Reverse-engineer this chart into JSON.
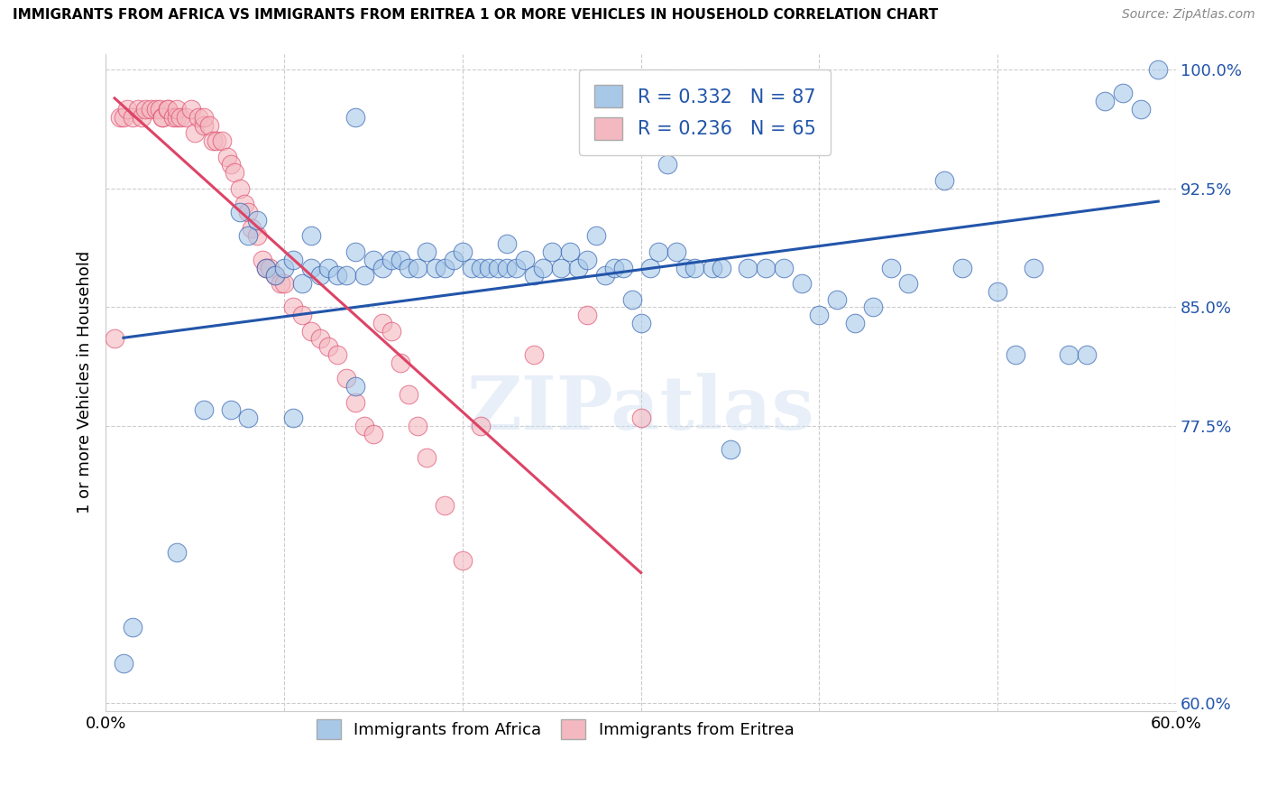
{
  "title": "IMMIGRANTS FROM AFRICA VS IMMIGRANTS FROM ERITREA 1 OR MORE VEHICLES IN HOUSEHOLD CORRELATION CHART",
  "source": "Source: ZipAtlas.com",
  "ylabel": "1 or more Vehicles in Household",
  "xlim": [
    0.0,
    0.6
  ],
  "ylim": [
    0.595,
    1.01
  ],
  "xticks": [
    0.0,
    0.1,
    0.2,
    0.3,
    0.4,
    0.5,
    0.6
  ],
  "xticklabels": [
    "0.0%",
    "",
    "",
    "",
    "",
    "",
    "60.0%"
  ],
  "yticks": [
    0.6,
    0.775,
    0.85,
    0.925,
    1.0
  ],
  "yticklabels": [
    "60.0%",
    "77.5%",
    "85.0%",
    "92.5%",
    "100.0%"
  ],
  "blue_color": "#a8c8e8",
  "pink_color": "#f4b8c0",
  "blue_line_color": "#2255aa",
  "pink_line_color": "#dd4466",
  "legend1_label": "Immigrants from Africa",
  "legend2_label": "Immigrants from Eritrea",
  "watermark": "ZIPatlas",
  "blue_scatter_x": [
    0.01,
    0.04,
    0.055,
    0.07,
    0.075,
    0.08,
    0.085,
    0.09,
    0.095,
    0.1,
    0.105,
    0.11,
    0.115,
    0.115,
    0.12,
    0.125,
    0.13,
    0.135,
    0.14,
    0.14,
    0.145,
    0.15,
    0.155,
    0.16,
    0.165,
    0.17,
    0.175,
    0.18,
    0.185,
    0.19,
    0.195,
    0.2,
    0.205,
    0.21,
    0.215,
    0.22,
    0.225,
    0.225,
    0.23,
    0.235,
    0.24,
    0.245,
    0.25,
    0.255,
    0.26,
    0.265,
    0.27,
    0.275,
    0.28,
    0.285,
    0.29,
    0.295,
    0.3,
    0.305,
    0.31,
    0.315,
    0.32,
    0.325,
    0.33,
    0.335,
    0.34,
    0.345,
    0.35,
    0.36,
    0.37,
    0.38,
    0.39,
    0.4,
    0.41,
    0.42,
    0.43,
    0.44,
    0.45,
    0.47,
    0.48,
    0.5,
    0.51,
    0.52,
    0.54,
    0.55,
    0.56,
    0.57,
    0.58,
    0.59,
    0.015,
    0.08,
    0.105,
    0.14
  ],
  "blue_scatter_y": [
    0.625,
    0.695,
    0.785,
    0.785,
    0.91,
    0.895,
    0.905,
    0.875,
    0.87,
    0.875,
    0.88,
    0.865,
    0.875,
    0.895,
    0.87,
    0.875,
    0.87,
    0.87,
    0.885,
    0.97,
    0.87,
    0.88,
    0.875,
    0.88,
    0.88,
    0.875,
    0.875,
    0.885,
    0.875,
    0.875,
    0.88,
    0.885,
    0.875,
    0.875,
    0.875,
    0.875,
    0.875,
    0.89,
    0.875,
    0.88,
    0.87,
    0.875,
    0.885,
    0.875,
    0.885,
    0.875,
    0.88,
    0.895,
    0.87,
    0.875,
    0.875,
    0.855,
    0.84,
    0.875,
    0.885,
    0.94,
    0.885,
    0.875,
    0.875,
    0.96,
    0.875,
    0.875,
    0.76,
    0.875,
    0.875,
    0.875,
    0.865,
    0.845,
    0.855,
    0.84,
    0.85,
    0.875,
    0.865,
    0.93,
    0.875,
    0.86,
    0.82,
    0.875,
    0.82,
    0.82,
    0.98,
    0.985,
    0.975,
    1.0,
    0.648,
    0.78,
    0.78,
    0.8
  ],
  "pink_scatter_x": [
    0.005,
    0.008,
    0.01,
    0.012,
    0.015,
    0.018,
    0.02,
    0.022,
    0.025,
    0.028,
    0.03,
    0.032,
    0.032,
    0.035,
    0.035,
    0.038,
    0.04,
    0.04,
    0.042,
    0.045,
    0.048,
    0.05,
    0.052,
    0.055,
    0.055,
    0.058,
    0.06,
    0.062,
    0.065,
    0.068,
    0.07,
    0.072,
    0.075,
    0.078,
    0.08,
    0.082,
    0.085,
    0.088,
    0.09,
    0.092,
    0.095,
    0.098,
    0.1,
    0.105,
    0.11,
    0.115,
    0.12,
    0.125,
    0.13,
    0.135,
    0.14,
    0.145,
    0.15,
    0.155,
    0.16,
    0.165,
    0.17,
    0.175,
    0.18,
    0.19,
    0.2,
    0.21,
    0.24,
    0.27,
    0.3
  ],
  "pink_scatter_y": [
    0.83,
    0.97,
    0.97,
    0.975,
    0.97,
    0.975,
    0.97,
    0.975,
    0.975,
    0.975,
    0.975,
    0.97,
    0.97,
    0.975,
    0.975,
    0.97,
    0.97,
    0.975,
    0.97,
    0.97,
    0.975,
    0.96,
    0.97,
    0.965,
    0.97,
    0.965,
    0.955,
    0.955,
    0.955,
    0.945,
    0.94,
    0.935,
    0.925,
    0.915,
    0.91,
    0.9,
    0.895,
    0.88,
    0.875,
    0.875,
    0.87,
    0.865,
    0.865,
    0.85,
    0.845,
    0.835,
    0.83,
    0.825,
    0.82,
    0.805,
    0.79,
    0.775,
    0.77,
    0.84,
    0.835,
    0.815,
    0.795,
    0.775,
    0.755,
    0.725,
    0.69,
    0.775,
    0.82,
    0.845,
    0.78
  ]
}
